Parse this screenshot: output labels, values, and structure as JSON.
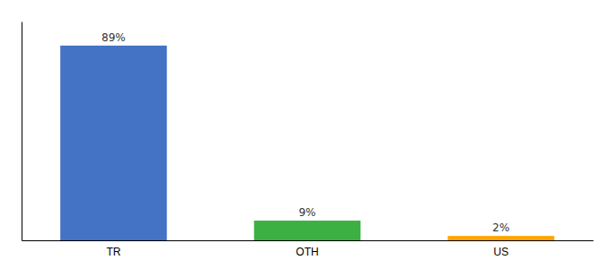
{
  "chart_data": {
    "type": "bar",
    "categories": [
      "TR",
      "OTH",
      "US"
    ],
    "values": [
      89,
      9,
      2
    ],
    "value_labels": [
      "89%",
      "9%",
      "2%"
    ],
    "data_labels": true,
    "colors": [
      "#4472C4",
      "#3CB043",
      "#FFA500"
    ],
    "ylim": [
      0,
      100
    ],
    "tick_labels": "x"
  }
}
